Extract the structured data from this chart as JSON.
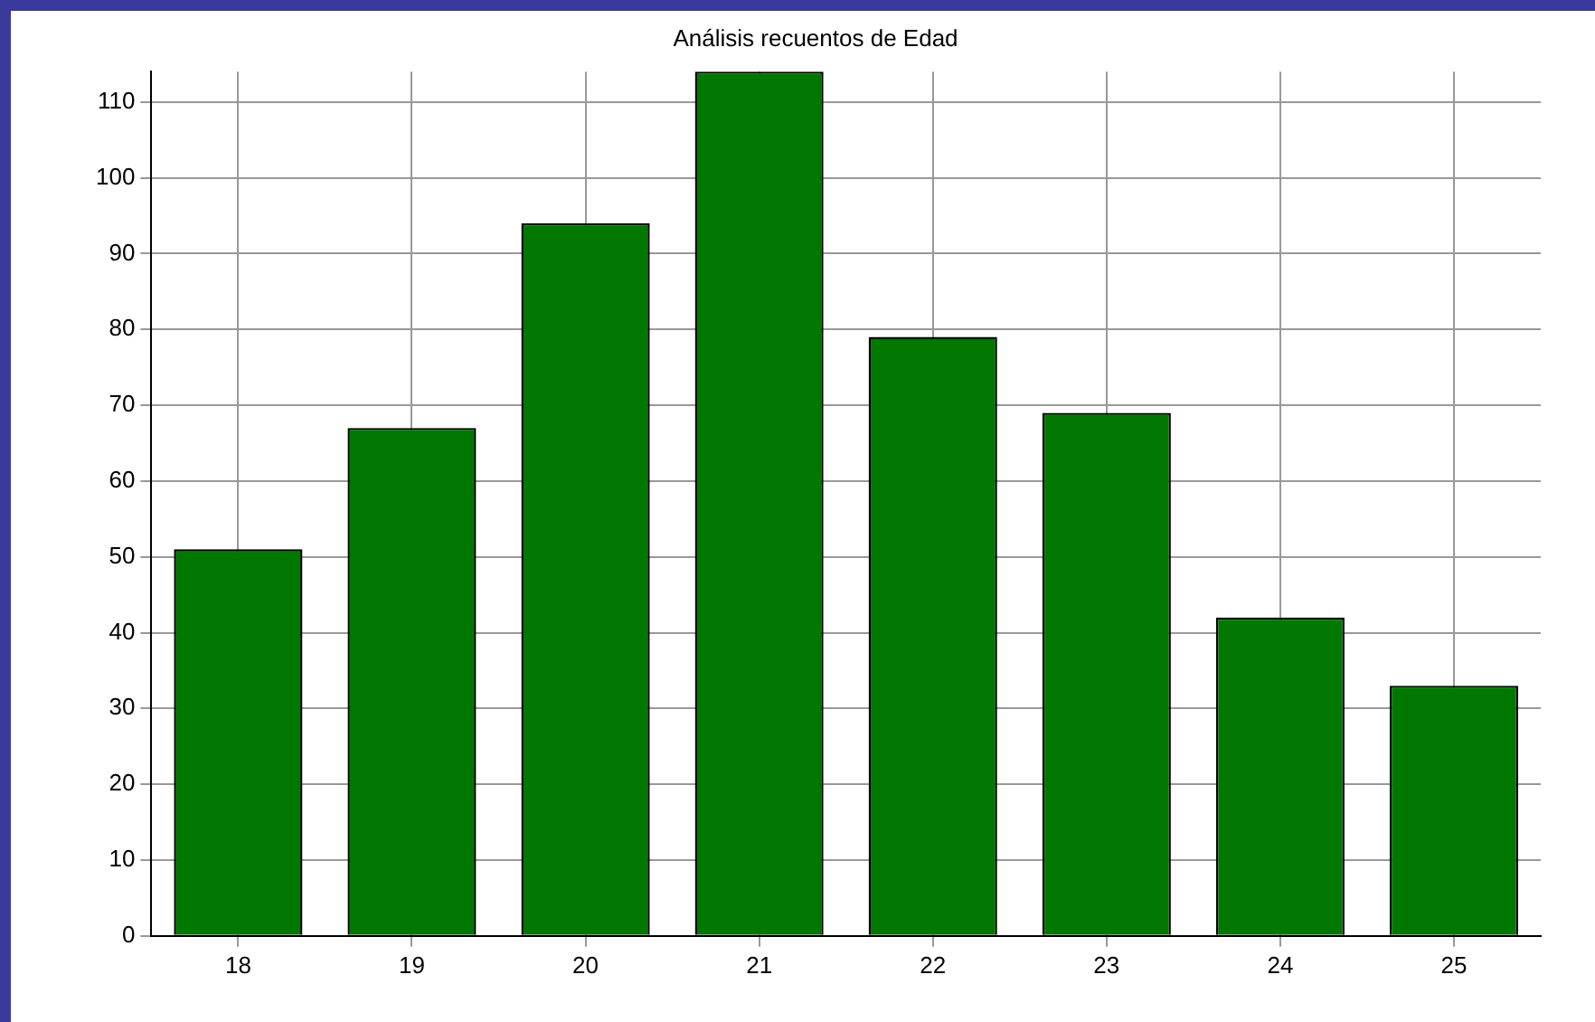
{
  "chart_data": {
    "type": "bar",
    "title": "Análisis recuentos de Edad",
    "categories": [
      "18",
      "19",
      "20",
      "21",
      "22",
      "23",
      "24",
      "25"
    ],
    "values": [
      51,
      67,
      94,
      114,
      79,
      69,
      42,
      33
    ],
    "color": "#007800",
    "ylim": [
      0,
      114
    ],
    "yticks": [
      0,
      10,
      20,
      30,
      40,
      50,
      60,
      70,
      80,
      90,
      100,
      110
    ],
    "grid": true
  }
}
